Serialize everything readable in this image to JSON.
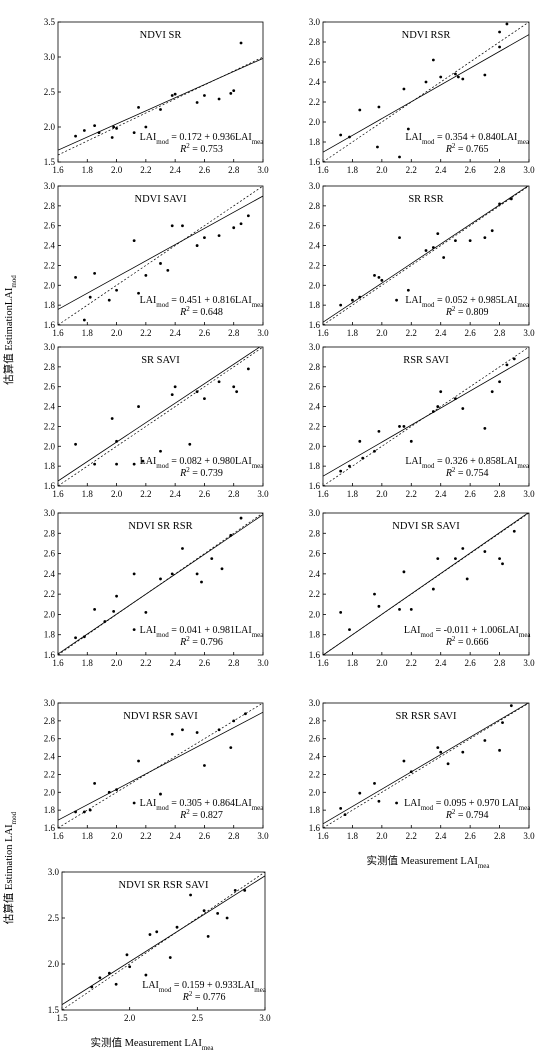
{
  "figure": {
    "y_label_top": [
      "估算值 EstimationLAI",
      "mod"
    ],
    "y_label_bottom": [
      "估算值 Estimation LAI",
      "mod"
    ],
    "x_label_right": [
      "实测值 Measurement LAI",
      "mea"
    ],
    "x_label_bottom": [
      "实测值 Measurement LAI",
      "mea"
    ]
  },
  "chart_data": [
    {
      "type": "scatter",
      "title": "NDVI SR",
      "x": [
        1.72,
        1.78,
        1.85,
        1.88,
        1.98,
        1.97,
        2.0,
        2.12,
        2.15,
        2.2,
        2.3,
        2.38,
        2.4,
        2.55,
        2.6,
        2.7,
        2.78,
        2.8,
        2.85
      ],
      "values": [
        1.87,
        1.95,
        2.02,
        1.92,
        2.0,
        1.85,
        1.98,
        1.92,
        2.28,
        2.0,
        2.25,
        2.45,
        2.47,
        2.35,
        2.45,
        2.4,
        2.48,
        2.52,
        3.2
      ],
      "fit": {
        "intercept": 0.172,
        "slope": 0.936
      },
      "equation": [
        "LAI",
        "mod",
        " = 0.172 + 0.936LAI",
        "mea"
      ],
      "r2_label": [
        "R",
        "2",
        " = 0.753"
      ],
      "xlim": [
        1.6,
        3.0
      ],
      "ylim": [
        1.5,
        3.5
      ],
      "xticks": [
        1.6,
        1.8,
        {
          "value": 2,
          "label": "2.0"
        },
        2.2,
        2.4,
        2.6,
        2.8,
        {
          "value": 3,
          "label": "3.0"
        }
      ],
      "yticks": [
        1.5,
        {
          "value": 2,
          "label": "2.0"
        },
        2.5,
        {
          "value": 3,
          "label": "3.0"
        },
        3.5
      ]
    },
    {
      "type": "scatter",
      "title": "NDVI RSR",
      "x": [
        1.72,
        1.78,
        1.85,
        1.97,
        1.98,
        2.12,
        2.15,
        2.18,
        2.3,
        2.35,
        2.4,
        2.5,
        2.52,
        2.55,
        2.7,
        2.8,
        2.85,
        2.8
      ],
      "values": [
        1.87,
        1.85,
        2.12,
        1.75,
        2.15,
        1.65,
        2.33,
        1.93,
        2.4,
        2.62,
        2.45,
        2.48,
        2.45,
        2.43,
        2.47,
        2.9,
        2.98,
        2.75
      ],
      "fit": {
        "intercept": 0.354,
        "slope": 0.84
      },
      "equation": [
        "LAI",
        "mod",
        " = 0.354 + 0.840LAI",
        "mea"
      ],
      "r2_label": [
        "R",
        "2",
        " = 0.765"
      ],
      "xlim": [
        1.6,
        3.0
      ],
      "ylim": [
        1.6,
        3.0
      ],
      "xticks": [
        1.6,
        1.8,
        {
          "value": 2,
          "label": "2.0"
        },
        2.2,
        2.4,
        2.6,
        2.8,
        {
          "value": 3,
          "label": "3.0"
        }
      ],
      "yticks": [
        1.6,
        1.8,
        {
          "value": 2,
          "label": "2.0"
        },
        2.2,
        2.4,
        2.6,
        2.8,
        {
          "value": 3,
          "label": "3.0"
        }
      ]
    },
    {
      "type": "scatter",
      "title": "NDVI SAVI",
      "x": [
        1.72,
        1.78,
        1.85,
        1.82,
        1.95,
        2.0,
        2.12,
        2.15,
        2.2,
        2.3,
        2.35,
        2.38,
        2.45,
        2.55,
        2.6,
        2.7,
        2.8,
        2.85,
        2.9
      ],
      "values": [
        2.08,
        1.65,
        2.12,
        1.88,
        1.85,
        1.95,
        2.45,
        1.92,
        2.1,
        2.22,
        2.15,
        2.6,
        2.6,
        2.4,
        2.48,
        2.5,
        2.58,
        2.62,
        2.7
      ],
      "fit": {
        "intercept": 0.451,
        "slope": 0.816
      },
      "equation": [
        "LAI",
        "mod",
        " = 0.451 + 0.816LAI",
        "mea"
      ],
      "r2_label": [
        "R",
        "2",
        " = 0.648"
      ],
      "xlim": [
        1.6,
        3.0
      ],
      "ylim": [
        1.6,
        3.0
      ],
      "xticks": [
        1.6,
        1.8,
        {
          "value": 2,
          "label": "2.0"
        },
        2.2,
        2.4,
        2.6,
        2.8,
        {
          "value": 3,
          "label": "3.0"
        }
      ],
      "yticks": [
        1.6,
        1.8,
        {
          "value": 2,
          "label": "2.0"
        },
        2.2,
        2.4,
        2.6,
        2.8,
        {
          "value": 3,
          "label": "3.0"
        }
      ]
    },
    {
      "type": "scatter",
      "title": "SR RSR",
      "x": [
        1.72,
        1.8,
        1.85,
        1.95,
        1.98,
        2.0,
        2.1,
        2.12,
        2.18,
        2.3,
        2.35,
        2.38,
        2.42,
        2.5,
        2.6,
        2.7,
        2.75,
        2.8,
        2.88
      ],
      "values": [
        1.8,
        1.85,
        1.88,
        2.1,
        2.08,
        2.05,
        1.85,
        2.48,
        1.95,
        2.35,
        2.38,
        2.52,
        2.28,
        2.45,
        2.45,
        2.48,
        2.55,
        2.82,
        2.87
      ],
      "fit": {
        "intercept": 0.052,
        "slope": 0.985
      },
      "equation": [
        "LAI",
        "mod",
        " = 0.052 + 0.985LAI",
        "mea"
      ],
      "r2_label": [
        "R",
        "2",
        " = 0.809"
      ],
      "xlim": [
        1.6,
        3.0
      ],
      "ylim": [
        1.6,
        3.0
      ],
      "xticks": [
        1.6,
        1.8,
        {
          "value": 2,
          "label": "2.0"
        },
        2.2,
        2.4,
        2.6,
        2.8,
        {
          "value": 3,
          "label": "3.0"
        }
      ],
      "yticks": [
        1.6,
        1.8,
        {
          "value": 2,
          "label": "2.0"
        },
        2.2,
        2.4,
        2.6,
        2.8,
        {
          "value": 3,
          "label": "3.0"
        }
      ]
    },
    {
      "type": "scatter",
      "title": "SR SAVI",
      "x": [
        1.72,
        1.85,
        1.97,
        2.0,
        2.0,
        2.15,
        2.18,
        2.3,
        2.38,
        2.4,
        2.5,
        2.55,
        2.6,
        2.7,
        2.8,
        2.82,
        2.9,
        2.12
      ],
      "values": [
        2.02,
        1.82,
        2.28,
        1.82,
        2.05,
        2.4,
        1.85,
        1.95,
        2.52,
        2.6,
        2.02,
        2.55,
        2.48,
        2.65,
        2.6,
        2.55,
        2.78,
        1.82
      ],
      "fit": {
        "intercept": 0.082,
        "slope": 0.98
      },
      "equation": [
        "LAI",
        "mod",
        " = 0.082 + 0.980LAI",
        "mea"
      ],
      "r2_label": [
        "R",
        "2",
        " = 0.739"
      ],
      "xlim": [
        1.6,
        3.0
      ],
      "ylim": [
        1.6,
        3.0
      ],
      "xticks": [
        1.6,
        1.8,
        {
          "value": 2,
          "label": "2.0"
        },
        2.2,
        2.4,
        2.6,
        2.8,
        {
          "value": 3,
          "label": "3.0"
        }
      ],
      "yticks": [
        1.6,
        1.8,
        {
          "value": 2,
          "label": "2.0"
        },
        2.2,
        2.4,
        2.6,
        2.8,
        {
          "value": 3,
          "label": "3.0"
        }
      ]
    },
    {
      "type": "scatter",
      "title": "RSR SAVI",
      "x": [
        1.72,
        1.78,
        1.85,
        1.87,
        1.95,
        1.98,
        2.12,
        2.15,
        2.2,
        2.35,
        2.4,
        2.38,
        2.5,
        2.55,
        2.7,
        2.75,
        2.8,
        2.85,
        2.9
      ],
      "values": [
        1.75,
        1.8,
        2.05,
        1.88,
        1.95,
        2.15,
        2.2,
        2.2,
        2.05,
        2.35,
        2.55,
        2.4,
        2.48,
        2.38,
        2.18,
        2.55,
        2.65,
        2.82,
        2.88
      ],
      "fit": {
        "intercept": 0.326,
        "slope": 0.858
      },
      "equation": [
        "LAI",
        "mod",
        " = 0.326 + 0.858LAI",
        "mea"
      ],
      "r2_label": [
        "R",
        "2",
        " = 0.754"
      ],
      "xlim": [
        1.6,
        3.0
      ],
      "ylim": [
        1.6,
        3.0
      ],
      "xticks": [
        1.6,
        1.8,
        {
          "value": 2,
          "label": "2.0"
        },
        2.2,
        2.4,
        2.6,
        2.8,
        {
          "value": 3,
          "label": "3.0"
        }
      ],
      "yticks": [
        1.6,
        1.8,
        {
          "value": 2,
          "label": "2.0"
        },
        2.2,
        2.4,
        2.6,
        2.8,
        {
          "value": 3,
          "label": "3.0"
        }
      ]
    },
    {
      "type": "scatter",
      "title": "NDVI SR RSR",
      "x": [
        1.72,
        1.78,
        1.85,
        1.92,
        1.98,
        2.0,
        2.12,
        2.12,
        2.2,
        2.3,
        2.38,
        2.45,
        2.55,
        2.58,
        2.65,
        2.72,
        2.78,
        2.85
      ],
      "values": [
        1.77,
        1.78,
        2.05,
        1.93,
        2.03,
        2.18,
        2.4,
        1.85,
        2.02,
        2.35,
        2.4,
        2.65,
        2.4,
        2.32,
        2.55,
        2.45,
        2.78,
        2.95
      ],
      "fit": {
        "intercept": 0.041,
        "slope": 0.981
      },
      "equation": [
        "LAI",
        "mod",
        " = 0.041 + 0.981LAI",
        "mea"
      ],
      "r2_label": [
        "R",
        "2",
        " = 0.796"
      ],
      "xlim": [
        1.6,
        3.0
      ],
      "ylim": [
        1.6,
        3.0
      ],
      "xticks": [
        1.6,
        1.8,
        {
          "value": 2,
          "label": "2.0"
        },
        2.2,
        2.4,
        2.6,
        2.8,
        {
          "value": 3,
          "label": "3.0"
        }
      ],
      "yticks": [
        1.6,
        1.8,
        {
          "value": 2,
          "label": "2.0"
        },
        2.2,
        2.4,
        2.6,
        2.8,
        {
          "value": 3,
          "label": "3.0"
        }
      ]
    },
    {
      "type": "scatter",
      "title": "NDVI SR SAVI",
      "x": [
        1.72,
        1.78,
        1.95,
        1.98,
        2.15,
        2.12,
        2.2,
        2.35,
        2.38,
        2.5,
        2.55,
        2.58,
        2.7,
        2.8,
        2.82,
        2.9
      ],
      "values": [
        2.02,
        1.85,
        2.2,
        2.08,
        2.42,
        2.05,
        2.05,
        2.25,
        2.55,
        2.55,
        2.65,
        2.35,
        2.62,
        2.55,
        2.5,
        2.82
      ],
      "fit": {
        "intercept": -0.011,
        "slope": 1.006
      },
      "equation": [
        "LAI",
        "mod",
        " = -0.011 + 1.006LAI",
        "mea"
      ],
      "r2_label": [
        "R",
        "2",
        " = 0.666"
      ],
      "xlim": [
        1.6,
        3.0
      ],
      "ylim": [
        1.6,
        3.0
      ],
      "xticks": [
        1.6,
        1.8,
        {
          "value": 2,
          "label": "2.0"
        },
        2.2,
        2.4,
        2.6,
        2.8,
        {
          "value": 3,
          "label": "3.0"
        }
      ],
      "yticks": [
        1.6,
        1.8,
        {
          "value": 2,
          "label": "2.0"
        },
        2.2,
        2.4,
        2.6,
        2.8,
        {
          "value": 3,
          "label": "3.0"
        }
      ]
    },
    {
      "type": "scatter",
      "title": "NDVI RSR SAVI",
      "x": [
        1.72,
        1.78,
        1.85,
        1.82,
        1.95,
        2.0,
        2.12,
        2.15,
        2.3,
        2.38,
        2.45,
        2.55,
        2.6,
        2.7,
        2.78,
        2.8,
        2.88
      ],
      "values": [
        1.78,
        1.78,
        2.1,
        1.8,
        2.0,
        2.03,
        1.88,
        2.35,
        1.98,
        2.65,
        2.7,
        2.67,
        2.3,
        2.7,
        2.5,
        2.8,
        2.88
      ],
      "fit": {
        "intercept": 0.305,
        "slope": 0.864
      },
      "equation": [
        "LAI",
        "mod",
        " = 0.305 + 0.864LAI",
        "mea"
      ],
      "r2_label": [
        "R",
        "2",
        " = 0.827"
      ],
      "xlim": [
        1.6,
        3.0
      ],
      "ylim": [
        1.6,
        3.0
      ],
      "xticks": [
        1.6,
        1.8,
        {
          "value": 2,
          "label": "2.0"
        },
        2.2,
        2.4,
        2.6,
        2.8,
        {
          "value": 3,
          "label": "3.0"
        }
      ],
      "yticks": [
        1.6,
        1.8,
        {
          "value": 2,
          "label": "2.0"
        },
        2.2,
        2.4,
        2.6,
        2.8,
        {
          "value": 3,
          "label": "3.0"
        }
      ]
    },
    {
      "type": "scatter",
      "title": "SR RSR SAVI",
      "x": [
        1.72,
        1.75,
        1.85,
        1.98,
        1.95,
        2.1,
        2.15,
        2.2,
        2.38,
        2.4,
        2.45,
        2.55,
        2.7,
        2.8,
        2.82,
        2.88
      ],
      "values": [
        1.82,
        1.75,
        1.99,
        1.9,
        2.1,
        1.88,
        2.35,
        2.23,
        2.5,
        2.45,
        2.32,
        2.45,
        2.58,
        2.47,
        2.78,
        2.97
      ],
      "fit": {
        "intercept": 0.095,
        "slope": 0.97
      },
      "equation": [
        "LAI",
        "mod",
        " = 0.095 + 0.970 LAI",
        "mea"
      ],
      "r2_label": [
        "R",
        "2",
        " = 0.794"
      ],
      "xlim": [
        1.6,
        3.0
      ],
      "ylim": [
        1.6,
        3.0
      ],
      "xticks": [
        1.6,
        1.8,
        {
          "value": 2,
          "label": "2.0"
        },
        2.2,
        2.4,
        2.6,
        2.8,
        {
          "value": 3,
          "label": "3.0"
        }
      ],
      "yticks": [
        1.6,
        1.8,
        {
          "value": 2,
          "label": "2.0"
        },
        2.2,
        2.4,
        2.6,
        2.8,
        {
          "value": 3,
          "label": "3.0"
        }
      ]
    },
    {
      "type": "scatter",
      "title": "NDVI SR RSR SAVI",
      "x": [
        1.72,
        1.78,
        1.85,
        1.9,
        1.98,
        2.0,
        2.12,
        2.15,
        2.2,
        2.3,
        2.35,
        2.45,
        2.55,
        2.58,
        2.65,
        2.72,
        2.78,
        2.85
      ],
      "values": [
        1.75,
        1.85,
        1.9,
        1.78,
        2.1,
        1.97,
        1.88,
        2.32,
        2.35,
        2.07,
        2.4,
        2.75,
        2.58,
        2.3,
        2.55,
        2.5,
        2.8,
        2.8
      ],
      "fit": {
        "intercept": 0.159,
        "slope": 0.933
      },
      "equation": [
        "LAI",
        "mod",
        " = 0.159 + 0.933LAI",
        "mea"
      ],
      "r2_label": [
        "R",
        "2",
        " = 0.776"
      ],
      "xlim": [
        1.5,
        3.0
      ],
      "ylim": [
        1.5,
        3.0
      ],
      "xticks": [
        1.5,
        {
          "value": 2,
          "label": "2.0"
        },
        2.5,
        {
          "value": 3,
          "label": "3.0"
        }
      ],
      "yticks": [
        1.5,
        {
          "value": 2,
          "label": "2.0"
        },
        2.5,
        {
          "value": 3,
          "label": "3.0"
        }
      ]
    }
  ]
}
